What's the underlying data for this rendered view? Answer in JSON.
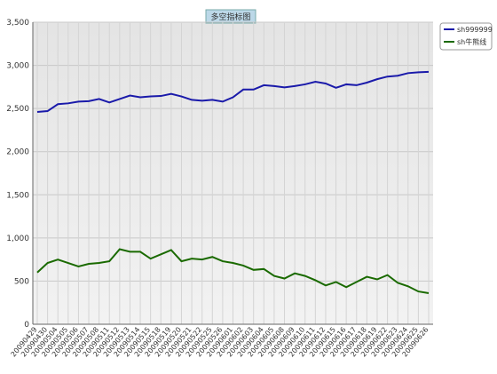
{
  "chart_data": {
    "type": "line",
    "title": "多空指标图",
    "categories": [
      "20090429",
      "20090430",
      "20090504",
      "20090505",
      "20090506",
      "20090507",
      "20090508",
      "20090511",
      "20090512",
      "20090513",
      "20090514",
      "20090515",
      "20090518",
      "20090519",
      "20090520",
      "20090521",
      "20090522",
      "20090525",
      "20090526",
      "20090601",
      "20090602",
      "20090603",
      "20090604",
      "20090605",
      "20090608",
      "20090609",
      "20090610",
      "20090611",
      "20090612",
      "20090615",
      "20090616",
      "20090617",
      "20090618",
      "20090619",
      "20090622",
      "20090623",
      "20090624",
      "20090625",
      "20090626"
    ],
    "series": [
      {
        "name": "sh999999",
        "color": "#1a1aaa",
        "values": [
          2460,
          2470,
          2550,
          2560,
          2580,
          2585,
          2610,
          2570,
          2610,
          2650,
          2630,
          2640,
          2645,
          2670,
          2640,
          2600,
          2590,
          2600,
          2580,
          2630,
          2720,
          2720,
          2770,
          2760,
          2745,
          2760,
          2780,
          2810,
          2790,
          2740,
          2780,
          2770,
          2800,
          2840,
          2870,
          2880,
          2910,
          2920,
          2925
        ]
      },
      {
        "name": "sh牛熊线",
        "color": "#1a6a00",
        "values": [
          600,
          710,
          750,
          710,
          670,
          700,
          710,
          730,
          870,
          840,
          840,
          760,
          810,
          860,
          730,
          760,
          750,
          780,
          730,
          710,
          680,
          630,
          640,
          560,
          530,
          590,
          560,
          510,
          450,
          490,
          430,
          490,
          550,
          520,
          570,
          480,
          440,
          380,
          360
        ]
      }
    ],
    "ylim": [
      0,
      3500
    ],
    "yticks": [
      0,
      500,
      {
        "value": 1000,
        "label": "1,000"
      },
      {
        "value": 1500,
        "label": "1,500"
      },
      {
        "value": 2000,
        "label": "2,000"
      },
      {
        "value": 2500,
        "label": "2,500"
      },
      {
        "value": 3000,
        "label": "3,000"
      },
      {
        "value": 3500,
        "label": "3,500"
      }
    ],
    "grid": true,
    "legend": "top-right"
  }
}
